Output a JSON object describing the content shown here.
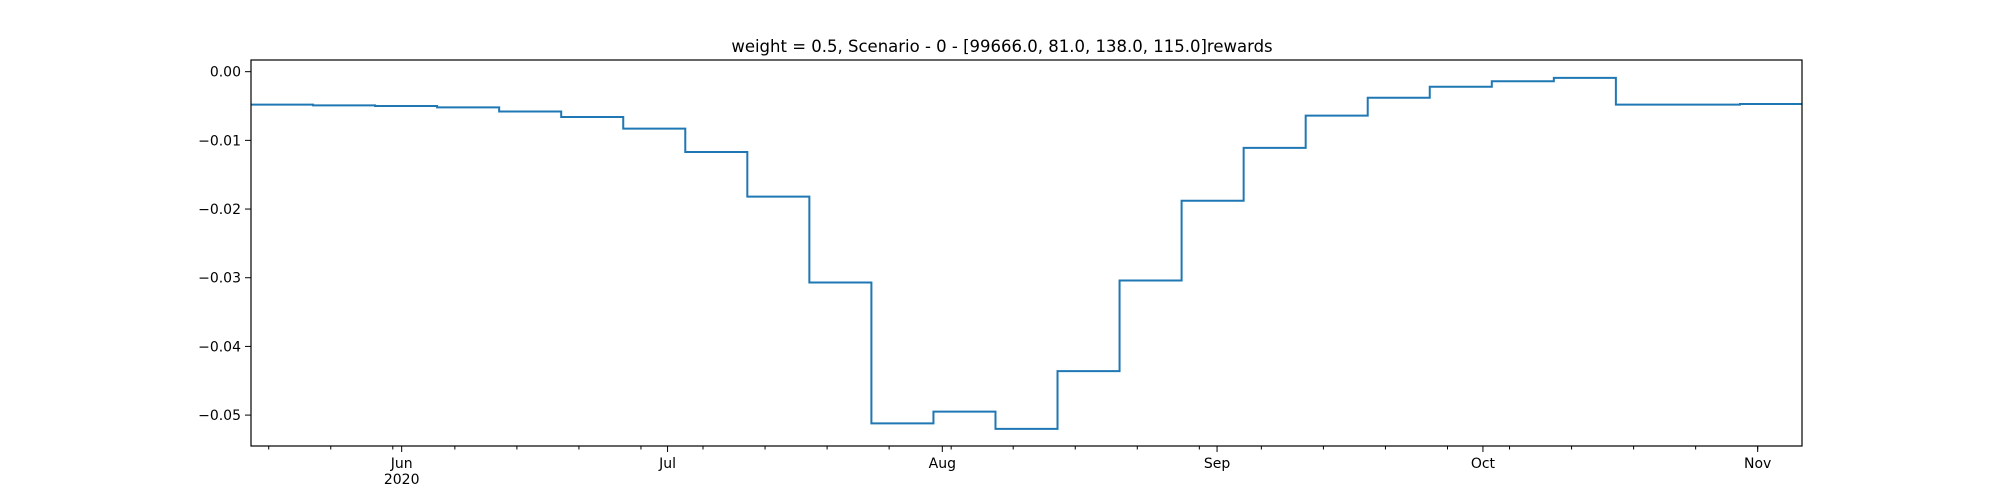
{
  "chart_data": {
    "type": "line",
    "title": "weight = 0.5, Scenario - 0 - [99666.0, 81.0, 138.0, 115.0]rewards",
    "xlabel": "",
    "ylabel": "",
    "step": "post",
    "x": [
      "2020-05-15",
      "2020-05-22",
      "2020-05-29",
      "2020-06-05",
      "2020-06-12",
      "2020-06-19",
      "2020-06-26",
      "2020-07-03",
      "2020-07-10",
      "2020-07-17",
      "2020-07-24",
      "2020-07-31",
      "2020-08-07",
      "2020-08-14",
      "2020-08-21",
      "2020-08-28",
      "2020-09-04",
      "2020-09-11",
      "2020-09-18",
      "2020-09-25",
      "2020-10-02",
      "2020-10-09",
      "2020-10-16",
      "2020-10-23",
      "2020-10-30"
    ],
    "x_end": "2020-11-06",
    "series": [
      {
        "name": "",
        "color": "#1f77b4",
        "values": [
          -0.0048,
          -0.0049,
          -0.005,
          -0.0052,
          -0.0058,
          -0.0066,
          -0.0083,
          -0.0117,
          -0.0182,
          -0.0307,
          -0.0512,
          -0.0495,
          -0.052,
          -0.0436,
          -0.0304,
          -0.0188,
          -0.0111,
          -0.0064,
          -0.0038,
          -0.0022,
          -0.0014,
          -0.0009,
          -0.0048,
          -0.0048,
          -0.0047
        ]
      }
    ],
    "xlim": [
      "2020-05-15",
      "2020-11-06"
    ],
    "ylim": [
      -0.0545,
      0.0017
    ],
    "x_major_ticks": [
      {
        "date": "2020-06-01",
        "label": "Jun",
        "sublabel": "2020"
      },
      {
        "date": "2020-07-01",
        "label": "Jul",
        "sublabel": ""
      },
      {
        "date": "2020-08-01",
        "label": "Aug",
        "sublabel": ""
      },
      {
        "date": "2020-09-01",
        "label": "Sep",
        "sublabel": ""
      },
      {
        "date": "2020-10-01",
        "label": "Oct",
        "sublabel": ""
      },
      {
        "date": "2020-11-01",
        "label": "Nov",
        "sublabel": ""
      }
    ],
    "x_minor_ticks": [
      "2020-05-17",
      "2020-05-24",
      "2020-05-31",
      "2020-06-07",
      "2020-06-14",
      "2020-06-21",
      "2020-06-28",
      "2020-07-05",
      "2020-07-12",
      "2020-07-19",
      "2020-07-26",
      "2020-08-02",
      "2020-08-09",
      "2020-08-16",
      "2020-08-23",
      "2020-08-30",
      "2020-09-06",
      "2020-09-13",
      "2020-09-20",
      "2020-09-27",
      "2020-10-04",
      "2020-10-11",
      "2020-10-18",
      "2020-10-25",
      "2020-11-01"
    ],
    "y_ticks": [
      {
        "value": 0.0,
        "label": "0.00"
      },
      {
        "value": -0.01,
        "label": "−0.01"
      },
      {
        "value": -0.02,
        "label": "−0.02"
      },
      {
        "value": -0.03,
        "label": "−0.03"
      },
      {
        "value": -0.04,
        "label": "−0.04"
      },
      {
        "value": -0.05,
        "label": "−0.05"
      }
    ],
    "grid": false,
    "legend": "none"
  }
}
